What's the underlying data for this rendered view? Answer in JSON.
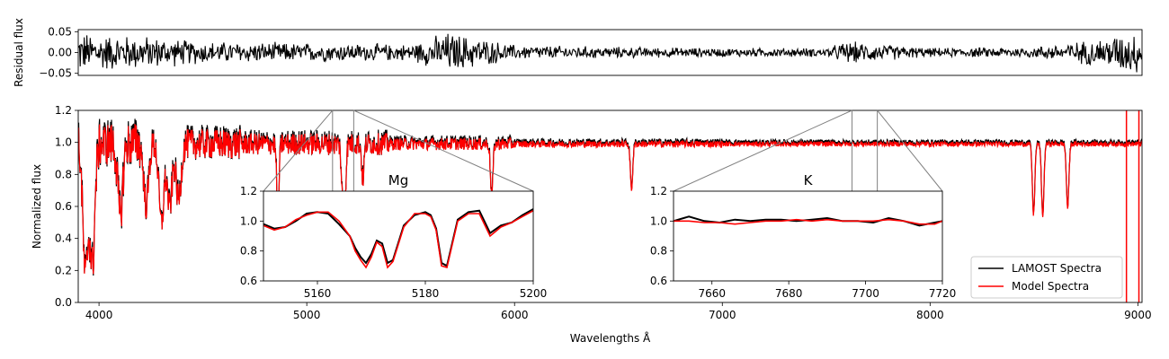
{
  "chart_data": [
    {
      "panel": "residual",
      "type": "line",
      "title": "",
      "xlabel": "",
      "ylabel": "Residual flux",
      "xlim": [
        3900,
        9020
      ],
      "ylim": [
        -0.055,
        0.055
      ],
      "yticks": [
        0.05,
        0.0,
        -0.05
      ],
      "ytick_labels": [
        "0.05",
        "0.00",
        "−0.05"
      ],
      "series": [
        {
          "style": "noisy residual around zero, larger amplitude at blue end (<4300) and red end (>8800)",
          "color": "#000000",
          "x": [
            3900,
            4000,
            4200,
            4500,
            5000,
            5500,
            5680,
            6000,
            6500,
            7000,
            7500,
            7600,
            8000,
            8500,
            8800,
            8950,
            9020
          ],
          "envelope": [
            0.055,
            0.05,
            0.045,
            0.03,
            0.025,
            0.022,
            0.055,
            0.02,
            0.015,
            0.012,
            0.012,
            0.03,
            0.012,
            0.015,
            0.035,
            0.055,
            0.055
          ]
        }
      ]
    },
    {
      "panel": "main",
      "type": "line",
      "title": "",
      "xlabel": "Wavelengths Å",
      "ylabel": "Normalized flux",
      "xlim": [
        3900,
        9020
      ],
      "ylim": [
        0.0,
        1.2
      ],
      "xticks": [
        4000,
        5000,
        6000,
        7000,
        8000,
        9000
      ],
      "xtick_labels": [
        "4000",
        "5000",
        "6000",
        "7000",
        "8000",
        "9000"
      ],
      "yticks": [
        0.0,
        0.2,
        0.4,
        0.6,
        0.8,
        1.0,
        1.2
      ],
      "ytick_labels": [
        "0.0",
        "0.2",
        "0.4",
        "0.6",
        "0.8",
        "1.0",
        "1.2"
      ],
      "legend_position": "lower-right",
      "series": [
        {
          "name": "LAMOST Spectra",
          "color": "#000000"
        },
        {
          "name": "Model Spectra",
          "color": "#ff0000"
        }
      ],
      "absorption_lines": [
        {
          "x": 3934,
          "depth": 0.18
        },
        {
          "x": 3968,
          "depth": 0.25
        },
        {
          "x": 4102,
          "depth": 0.55
        },
        {
          "x": 4227,
          "depth": 0.62
        },
        {
          "x": 4300,
          "depth": 0.5
        },
        {
          "x": 4340,
          "depth": 0.6
        },
        {
          "x": 4383,
          "depth": 0.65
        },
        {
          "x": 4861,
          "depth": 0.62
        },
        {
          "x": 5172,
          "depth": 0.7
        },
        {
          "x": 5183,
          "depth": 0.68
        },
        {
          "x": 5270,
          "depth": 0.78
        },
        {
          "x": 5890,
          "depth": 0.68
        },
        {
          "x": 6563,
          "depth": 0.72
        },
        {
          "x": 8498,
          "depth": 0.56
        },
        {
          "x": 8542,
          "depth": 0.55
        },
        {
          "x": 8662,
          "depth": 0.6
        }
      ]
    },
    {
      "panel": "inset-mg",
      "type": "line",
      "title": "Mg",
      "xlim": [
        5150,
        5200
      ],
      "ylim": [
        0.6,
        1.2
      ],
      "xticks": [
        5160,
        5180,
        5200
      ],
      "xtick_labels": [
        "5160",
        "5180",
        "5200"
      ],
      "yticks": [
        0.6,
        0.8,
        1.0,
        1.2
      ],
      "ytick_labels": [
        "0.6",
        "0.8",
        "1.0",
        "1.2"
      ],
      "zoom_region": [
        5150,
        5200
      ],
      "series": [
        {
          "name": "LAMOST Spectra",
          "color": "#000000",
          "x": [
            5150,
            5152,
            5154,
            5156,
            5158,
            5160,
            5162,
            5164,
            5166,
            5167,
            5168,
            5169,
            5170,
            5171,
            5172,
            5173,
            5174,
            5176,
            5178,
            5180,
            5181,
            5182,
            5183,
            5184,
            5186,
            5188,
            5190,
            5192,
            5194,
            5196,
            5198,
            5200
          ],
          "y": [
            0.98,
            0.95,
            0.96,
            1.0,
            1.05,
            1.06,
            1.05,
            0.98,
            0.9,
            0.82,
            0.76,
            0.72,
            0.78,
            0.87,
            0.85,
            0.72,
            0.74,
            0.97,
            1.04,
            1.06,
            1.04,
            0.95,
            0.72,
            0.7,
            1.01,
            1.06,
            1.07,
            0.92,
            0.97,
            0.99,
            1.04,
            1.08
          ]
        },
        {
          "name": "Model Spectra",
          "color": "#ff0000",
          "x": [
            5150,
            5152,
            5154,
            5156,
            5158,
            5160,
            5162,
            5164,
            5166,
            5167,
            5168,
            5169,
            5170,
            5171,
            5172,
            5173,
            5174,
            5176,
            5178,
            5180,
            5181,
            5182,
            5183,
            5184,
            5186,
            5188,
            5190,
            5192,
            5194,
            5196,
            5198,
            5200
          ],
          "y": [
            0.97,
            0.94,
            0.96,
            1.01,
            1.04,
            1.06,
            1.06,
            1.0,
            0.9,
            0.8,
            0.74,
            0.69,
            0.76,
            0.86,
            0.83,
            0.69,
            0.73,
            0.96,
            1.05,
            1.05,
            1.03,
            0.94,
            0.7,
            0.69,
            1.0,
            1.05,
            1.05,
            0.9,
            0.96,
            0.99,
            1.03,
            1.07
          ]
        }
      ]
    },
    {
      "panel": "inset-k",
      "type": "line",
      "title": "K",
      "xlim": [
        7650,
        7720
      ],
      "ylim": [
        0.6,
        1.2
      ],
      "xticks": [
        7660,
        7680,
        7700,
        7720
      ],
      "xtick_labels": [
        "7660",
        "7680",
        "7700",
        "7720"
      ],
      "yticks": [
        0.6,
        0.8,
        1.0,
        1.2
      ],
      "ytick_labels": [
        "0.6",
        "0.8",
        "1.0",
        "1.2"
      ],
      "zoom_region": [
        7650,
        7720
      ],
      "series": [
        {
          "name": "LAMOST Spectra",
          "color": "#000000",
          "x": [
            7650,
            7654,
            7658,
            7662,
            7666,
            7670,
            7674,
            7678,
            7682,
            7686,
            7690,
            7694,
            7698,
            7702,
            7706,
            7710,
            7714,
            7718,
            7720
          ],
          "y": [
            1.0,
            1.03,
            1.0,
            0.99,
            1.01,
            1.0,
            1.01,
            1.01,
            1.0,
            1.01,
            1.02,
            1.0,
            1.0,
            0.99,
            1.02,
            1.0,
            0.97,
            0.99,
            1.0
          ]
        },
        {
          "name": "Model Spectra",
          "color": "#ff0000",
          "x": [
            7650,
            7654,
            7658,
            7662,
            7666,
            7670,
            7674,
            7678,
            7682,
            7686,
            7690,
            7694,
            7698,
            7702,
            7706,
            7710,
            7714,
            7718,
            7720
          ],
          "y": [
            1.0,
            1.0,
            0.99,
            0.99,
            0.98,
            0.99,
            1.0,
            1.0,
            1.01,
            1.0,
            1.01,
            1.0,
            1.0,
            1.0,
            1.01,
            1.0,
            0.98,
            0.98,
            1.0
          ]
        }
      ]
    }
  ]
}
